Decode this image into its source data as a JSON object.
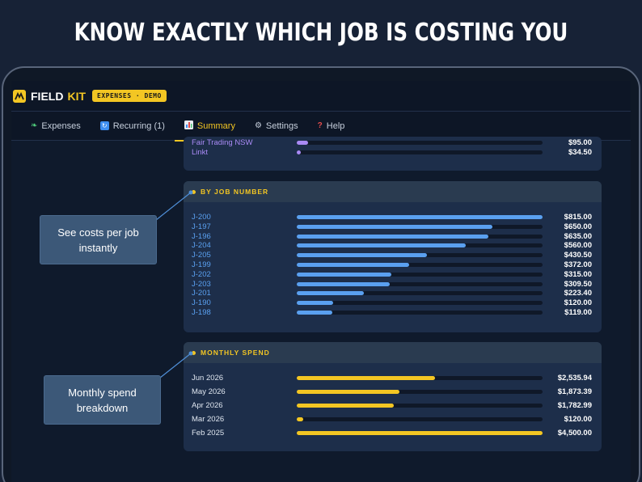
{
  "headline": "KNOW EXACTLY WHICH JOB IS COSTING YOU",
  "brand": {
    "name_part1": "FIELD",
    "name_part2": "KIT",
    "badge": "EXPENSES · DEMO"
  },
  "colors": {
    "accent": "#f3c623",
    "job_bar": "#5aa0f0",
    "vendor_bar": "#a98af5",
    "month_bar": "#f3c623"
  },
  "tabs": [
    {
      "label": "Expenses",
      "icon": "leaf-icon"
    },
    {
      "label": "Recurring (1)",
      "icon": "recurring-icon"
    },
    {
      "label": "Summary",
      "icon": "bar-chart-icon",
      "active": true
    },
    {
      "label": "Settings",
      "icon": "gear-icon"
    },
    {
      "label": "Help",
      "icon": "question-icon"
    }
  ],
  "vendors": {
    "rows": [
      {
        "label": "Fair Trading NSW",
        "amount": "$95.00",
        "fraction": 0.047
      },
      {
        "label": "Linkt",
        "amount": "$34.50",
        "fraction": 0.017
      }
    ]
  },
  "by_job": {
    "title": "BY JOB NUMBER",
    "rows": [
      {
        "label": "J-200",
        "amount": "$815.00",
        "value": 815.0
      },
      {
        "label": "J-197",
        "amount": "$650.00",
        "value": 650.0
      },
      {
        "label": "J-196",
        "amount": "$635.00",
        "value": 635.0
      },
      {
        "label": "J-204",
        "amount": "$560.00",
        "value": 560.0
      },
      {
        "label": "J-205",
        "amount": "$430.50",
        "value": 430.5
      },
      {
        "label": "J-199",
        "amount": "$372.00",
        "value": 372.0
      },
      {
        "label": "J-202",
        "amount": "$315.00",
        "value": 315.0
      },
      {
        "label": "J-203",
        "amount": "$309.50",
        "value": 309.5
      },
      {
        "label": "J-201",
        "amount": "$223.40",
        "value": 223.4
      },
      {
        "label": "J-190",
        "amount": "$120.00",
        "value": 120.0
      },
      {
        "label": "J-198",
        "amount": "$119.00",
        "value": 119.0
      }
    ]
  },
  "monthly": {
    "title": "MONTHLY SPEND",
    "rows": [
      {
        "label": "Jun 2026",
        "amount": "$2,535.94",
        "value": 2535.94
      },
      {
        "label": "May 2026",
        "amount": "$1,873.39",
        "value": 1873.39
      },
      {
        "label": "Apr 2026",
        "amount": "$1,782.99",
        "value": 1782.99
      },
      {
        "label": "Mar 2026",
        "amount": "$120.00",
        "value": 120.0
      },
      {
        "label": "Feb 2025",
        "amount": "$4,500.00",
        "value": 4500.0
      }
    ]
  },
  "callouts": {
    "jobs": "See costs per job instantly",
    "monthly": "Monthly spend breakdown"
  }
}
